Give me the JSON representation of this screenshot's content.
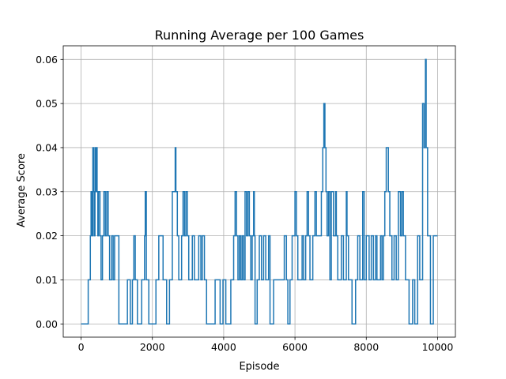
{
  "chart_data": {
    "type": "line",
    "title": "Running Average per 100 Games",
    "xlabel": "Episode",
    "ylabel": "Average Score",
    "xlim": [
      -500,
      10500
    ],
    "ylim": [
      -0.003,
      0.0631
    ],
    "xticks": [
      0,
      2000,
      4000,
      6000,
      8000,
      10000
    ],
    "yticks": [
      0.0,
      0.01,
      0.02,
      0.03,
      0.04,
      0.05,
      0.06
    ],
    "ytick_labels": [
      "0.00",
      "0.01",
      "0.02",
      "0.03",
      "0.04",
      "0.05",
      "0.06"
    ],
    "grid": true,
    "legend": "none",
    "line_color": "#1f77b4",
    "series": [
      {
        "step": "post",
        "points": [
          [
            0,
            0.0
          ],
          [
            180,
            0.0
          ],
          [
            200,
            0.01
          ],
          [
            260,
            0.02
          ],
          [
            280,
            0.03
          ],
          [
            300,
            0.02
          ],
          [
            330,
            0.04
          ],
          [
            350,
            0.03
          ],
          [
            370,
            0.02
          ],
          [
            390,
            0.04
          ],
          [
            410,
            0.03
          ],
          [
            430,
            0.04
          ],
          [
            450,
            0.03
          ],
          [
            470,
            0.02
          ],
          [
            490,
            0.03
          ],
          [
            530,
            0.02
          ],
          [
            560,
            0.01
          ],
          [
            600,
            0.02
          ],
          [
            640,
            0.03
          ],
          [
            680,
            0.02
          ],
          [
            720,
            0.03
          ],
          [
            760,
            0.02
          ],
          [
            800,
            0.01
          ],
          [
            860,
            0.02
          ],
          [
            900,
            0.01
          ],
          [
            940,
            0.02
          ],
          [
            1060,
            0.0
          ],
          [
            1300,
            0.01
          ],
          [
            1380,
            0.0
          ],
          [
            1440,
            0.01
          ],
          [
            1480,
            0.02
          ],
          [
            1520,
            0.01
          ],
          [
            1580,
            0.0
          ],
          [
            1700,
            0.01
          ],
          [
            1780,
            0.02
          ],
          [
            1800,
            0.03
          ],
          [
            1830,
            0.01
          ],
          [
            1900,
            0.0
          ],
          [
            2100,
            0.01
          ],
          [
            2180,
            0.02
          ],
          [
            2300,
            0.01
          ],
          [
            2400,
            0.0
          ],
          [
            2480,
            0.01
          ],
          [
            2560,
            0.03
          ],
          [
            2640,
            0.04
          ],
          [
            2660,
            0.03
          ],
          [
            2700,
            0.02
          ],
          [
            2740,
            0.01
          ],
          [
            2820,
            0.02
          ],
          [
            2860,
            0.03
          ],
          [
            2900,
            0.02
          ],
          [
            2940,
            0.03
          ],
          [
            2980,
            0.02
          ],
          [
            3020,
            0.01
          ],
          [
            3120,
            0.02
          ],
          [
            3180,
            0.01
          ],
          [
            3300,
            0.02
          ],
          [
            3360,
            0.01
          ],
          [
            3400,
            0.02
          ],
          [
            3460,
            0.01
          ],
          [
            3520,
            0.0
          ],
          [
            3760,
            0.01
          ],
          [
            3900,
            0.0
          ],
          [
            3980,
            0.01
          ],
          [
            4060,
            0.0
          ],
          [
            4200,
            0.01
          ],
          [
            4280,
            0.02
          ],
          [
            4320,
            0.03
          ],
          [
            4360,
            0.02
          ],
          [
            4400,
            0.01
          ],
          [
            4440,
            0.02
          ],
          [
            4480,
            0.01
          ],
          [
            4520,
            0.02
          ],
          [
            4560,
            0.01
          ],
          [
            4600,
            0.03
          ],
          [
            4640,
            0.02
          ],
          [
            4680,
            0.03
          ],
          [
            4720,
            0.02
          ],
          [
            4760,
            0.01
          ],
          [
            4800,
            0.02
          ],
          [
            4840,
            0.03
          ],
          [
            4860,
            0.02
          ],
          [
            4880,
            0.0
          ],
          [
            4940,
            0.01
          ],
          [
            5000,
            0.02
          ],
          [
            5060,
            0.01
          ],
          [
            5120,
            0.02
          ],
          [
            5180,
            0.01
          ],
          [
            5260,
            0.02
          ],
          [
            5300,
            0.0
          ],
          [
            5400,
            0.01
          ],
          [
            5700,
            0.02
          ],
          [
            5760,
            0.01
          ],
          [
            5800,
            0.0
          ],
          [
            5860,
            0.01
          ],
          [
            5920,
            0.02
          ],
          [
            6000,
            0.03
          ],
          [
            6040,
            0.02
          ],
          [
            6080,
            0.01
          ],
          [
            6200,
            0.02
          ],
          [
            6240,
            0.01
          ],
          [
            6300,
            0.02
          ],
          [
            6340,
            0.03
          ],
          [
            6380,
            0.02
          ],
          [
            6420,
            0.01
          ],
          [
            6500,
            0.02
          ],
          [
            6560,
            0.03
          ],
          [
            6600,
            0.02
          ],
          [
            6740,
            0.03
          ],
          [
            6780,
            0.04
          ],
          [
            6810,
            0.05
          ],
          [
            6840,
            0.04
          ],
          [
            6870,
            0.03
          ],
          [
            6900,
            0.02
          ],
          [
            6940,
            0.03
          ],
          [
            6980,
            0.01
          ],
          [
            7020,
            0.03
          ],
          [
            7080,
            0.02
          ],
          [
            7140,
            0.03
          ],
          [
            7160,
            0.02
          ],
          [
            7200,
            0.01
          ],
          [
            7300,
            0.02
          ],
          [
            7360,
            0.01
          ],
          [
            7440,
            0.03
          ],
          [
            7460,
            0.02
          ],
          [
            7500,
            0.01
          ],
          [
            7600,
            0.0
          ],
          [
            7700,
            0.01
          ],
          [
            7760,
            0.02
          ],
          [
            7820,
            0.01
          ],
          [
            7900,
            0.03
          ],
          [
            7940,
            0.01
          ],
          [
            8000,
            0.02
          ],
          [
            8080,
            0.01
          ],
          [
            8140,
            0.02
          ],
          [
            8200,
            0.01
          ],
          [
            8260,
            0.02
          ],
          [
            8300,
            0.01
          ],
          [
            8400,
            0.02
          ],
          [
            8440,
            0.01
          ],
          [
            8480,
            0.02
          ],
          [
            8520,
            0.03
          ],
          [
            8560,
            0.04
          ],
          [
            8620,
            0.03
          ],
          [
            8660,
            0.02
          ],
          [
            8720,
            0.01
          ],
          [
            8780,
            0.02
          ],
          [
            8840,
            0.01
          ],
          [
            8900,
            0.03
          ],
          [
            8960,
            0.02
          ],
          [
            9000,
            0.03
          ],
          [
            9040,
            0.02
          ],
          [
            9100,
            0.01
          ],
          [
            9200,
            0.0
          ],
          [
            9300,
            0.01
          ],
          [
            9360,
            0.0
          ],
          [
            9440,
            0.02
          ],
          [
            9500,
            0.01
          ],
          [
            9580,
            0.05
          ],
          [
            9620,
            0.04
          ],
          [
            9660,
            0.06
          ],
          [
            9680,
            0.04
          ],
          [
            9720,
            0.02
          ],
          [
            9800,
            0.0
          ],
          [
            9880,
            0.02
          ],
          [
            10000,
            0.02
          ]
        ]
      }
    ]
  }
}
